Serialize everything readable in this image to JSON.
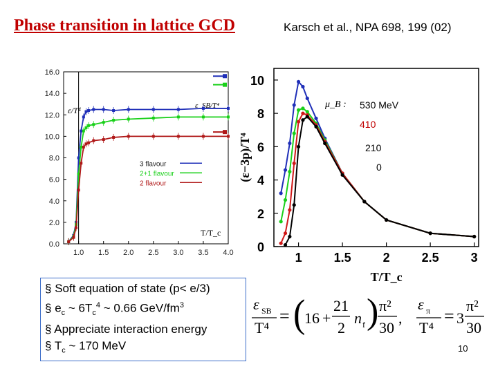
{
  "slide": {
    "title": "Phase transition in lattice GCD",
    "reference": "Karsch et al., NPA 698, 199 (02)",
    "page_number": "10"
  },
  "bullets": [
    {
      "pre": "Soft equation of state (p< e/3)",
      "parts": []
    },
    {
      "pre": "e",
      "sub1": "c",
      "mid": " ~ 6T",
      "sub2": "c",
      "sup": "4",
      "post": " ~ 0.66 GeV/fm",
      "sup2": "3"
    },
    {
      "pre": "Appreciate interaction energy",
      "parts": []
    },
    {
      "pre": "T",
      "sub1": "c",
      "post": " ~ 170 MeV"
    }
  ],
  "formula": {
    "lhs1": "ε",
    "lhs1_sub": "SB",
    "den1": "T⁴",
    "n16": "16",
    "plus": "+",
    "frac_num": "21",
    "frac_den": "2",
    "nf": "n",
    "nf_sub": "f",
    "pi2": "π²",
    "n30": "30",
    "lhs2": "ε",
    "lhs2_sub": "π",
    "den2": "T⁴",
    "n3": "3",
    "pi2b": "π²",
    "n30b": "30"
  },
  "chart_data": [
    {
      "type": "line",
      "title": "",
      "ylabel": "ε/T⁴",
      "xlabel": "T/T_c",
      "x_ticks": [
        "1.0",
        "1.5",
        "2.0",
        "2.5",
        "3.0",
        "3.5",
        "4.0"
      ],
      "y_ticks": [
        "0.0",
        "2.0",
        "4.0",
        "6.0",
        "8.0",
        "10.0",
        "12.0",
        "14.0",
        "16.0"
      ],
      "xlim": [
        0.7,
        4.0
      ],
      "ylim": [
        0,
        16
      ],
      "annotation_sb": "ε_SB/T⁴",
      "series": [
        {
          "name": "3 flavour",
          "color": "#1f2fb8",
          "x": [
            0.8,
            0.9,
            0.95,
            1.0,
            1.05,
            1.1,
            1.15,
            1.2,
            1.3,
            1.5,
            1.7,
            2.0,
            2.5,
            3.0,
            3.5,
            4.0
          ],
          "y": [
            0.2,
            0.8,
            2.0,
            8.0,
            10.5,
            11.8,
            12.3,
            12.4,
            12.5,
            12.5,
            12.4,
            12.5,
            12.5,
            12.5,
            12.6,
            12.6
          ]
        },
        {
          "name": "2+1 flavour",
          "color": "#19d019",
          "x": [
            0.8,
            0.9,
            0.95,
            1.0,
            1.05,
            1.1,
            1.15,
            1.2,
            1.3,
            1.5,
            1.7,
            2.0,
            2.5,
            3.0,
            3.5,
            4.0
          ],
          "y": [
            0.2,
            0.7,
            1.8,
            6.5,
            9.0,
            10.5,
            10.8,
            11.0,
            11.1,
            11.3,
            11.5,
            11.6,
            11.7,
            11.8,
            11.8,
            11.8
          ]
        },
        {
          "name": "2 flavour",
          "color": "#b01818",
          "x": [
            0.8,
            0.9,
            0.95,
            1.0,
            1.05,
            1.1,
            1.15,
            1.2,
            1.3,
            1.5,
            1.7,
            2.0,
            2.5,
            3.0,
            3.5,
            4.0
          ],
          "y": [
            0.2,
            0.6,
            1.5,
            5.0,
            7.5,
            9.0,
            9.3,
            9.4,
            9.6,
            9.7,
            9.9,
            10.0,
            10.0,
            10.0,
            10.0,
            10.0
          ]
        }
      ],
      "sb_limits": [
        {
          "series": "3 flavour",
          "value": 15.6
        },
        {
          "series": "2+1 flavour",
          "value": 14.8
        },
        {
          "series": "2 flavour",
          "value": 10.4
        }
      ],
      "legend_position": "bottom-right"
    },
    {
      "type": "line",
      "title": "",
      "ylabel": "(ε−3p)/T⁴",
      "xlabel": "T/T_c",
      "x_ticks": [
        "1",
        "1.5",
        "2",
        "2.5",
        "3"
      ],
      "y_ticks": [
        "0",
        "2",
        "4",
        "6",
        "8",
        "10"
      ],
      "xlim": [
        0.72,
        3.05
      ],
      "ylim": [
        0,
        10.7
      ],
      "legend_title": "μ_B :",
      "series": [
        {
          "name": "530 MeV",
          "color": "#1f2fb8",
          "x": [
            0.8,
            0.85,
            0.9,
            0.95,
            1.0,
            1.05,
            1.1,
            1.2,
            1.3,
            1.5,
            1.75,
            2.0,
            2.5,
            3.0
          ],
          "y": [
            3.2,
            4.6,
            6.2,
            8.5,
            9.9,
            9.6,
            8.9,
            7.7,
            6.5,
            4.4,
            2.7,
            1.6,
            0.8,
            0.6
          ]
        },
        {
          "name": "410",
          "color": "#19d019",
          "x": [
            0.8,
            0.85,
            0.9,
            0.95,
            1.0,
            1.05,
            1.1,
            1.2,
            1.3,
            1.5,
            1.75,
            2.0,
            2.5,
            3.0
          ],
          "y": [
            1.5,
            2.8,
            4.5,
            6.8,
            8.2,
            8.3,
            8.1,
            7.4,
            6.4,
            4.4,
            2.7,
            1.6,
            0.8,
            0.6
          ]
        },
        {
          "name": "210",
          "color": "#d01818",
          "x": [
            0.8,
            0.85,
            0.9,
            0.95,
            1.0,
            1.05,
            1.1,
            1.2,
            1.3,
            1.5,
            1.75,
            2.0,
            2.5,
            3.0
          ],
          "y": [
            0.2,
            0.8,
            2.2,
            5.0,
            7.5,
            8.0,
            7.9,
            7.3,
            6.3,
            4.4,
            2.7,
            1.6,
            0.8,
            0.6
          ]
        },
        {
          "name": "0",
          "color": "#000000",
          "x": [
            0.85,
            0.9,
            0.95,
            1.0,
            1.05,
            1.1,
            1.2,
            1.3,
            1.5,
            1.75,
            2.0,
            2.5,
            3.0
          ],
          "y": [
            0.1,
            0.6,
            2.5,
            6.0,
            7.6,
            7.8,
            7.2,
            6.2,
            4.3,
            2.7,
            1.6,
            0.8,
            0.6
          ]
        }
      ],
      "legend_position": "top-right"
    }
  ]
}
